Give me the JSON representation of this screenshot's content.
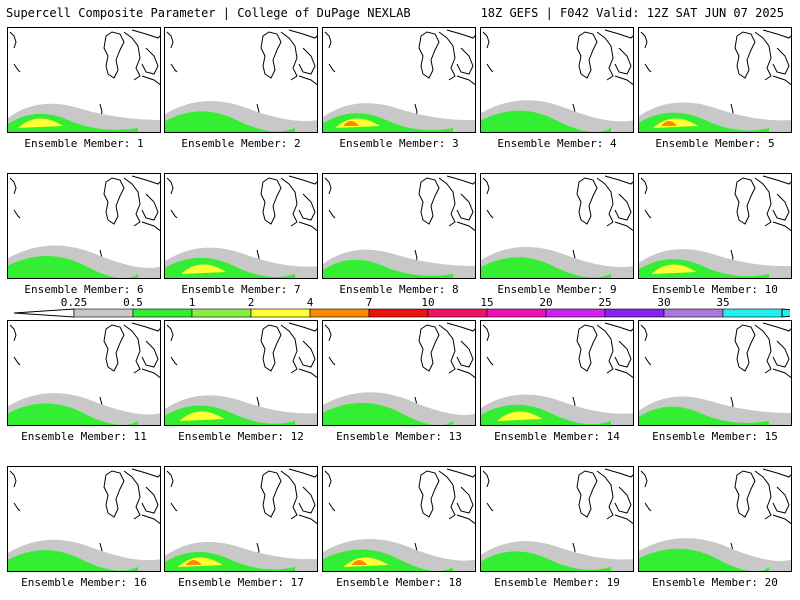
{
  "header": {
    "left": "Supercell Composite Parameter | College of DuPage NEXLAB",
    "right": "18Z GEFS | F042 Valid: 12Z SAT JUN 07 2025"
  },
  "caption_prefix": "Ensemble Member:",
  "members": [
    {
      "number": "1",
      "intensity": 2
    },
    {
      "number": "2",
      "intensity": 1
    },
    {
      "number": "3",
      "intensity": 3
    },
    {
      "number": "4",
      "intensity": 1
    },
    {
      "number": "5",
      "intensity": 3
    },
    {
      "number": "6",
      "intensity": 1
    },
    {
      "number": "7",
      "intensity": 2
    },
    {
      "number": "8",
      "intensity": 1
    },
    {
      "number": "9",
      "intensity": 1
    },
    {
      "number": "10",
      "intensity": 2
    },
    {
      "number": "11",
      "intensity": 1
    },
    {
      "number": "12",
      "intensity": 2
    },
    {
      "number": "13",
      "intensity": 1
    },
    {
      "number": "14",
      "intensity": 2
    },
    {
      "number": "15",
      "intensity": 1
    },
    {
      "number": "16",
      "intensity": 1
    },
    {
      "number": "17",
      "intensity": 3
    },
    {
      "number": "18",
      "intensity": 3
    },
    {
      "number": "19",
      "intensity": 1
    },
    {
      "number": "20",
      "intensity": 1
    }
  ],
  "colorbar": {
    "labels": [
      "0.25",
      "0.5",
      "1",
      "2",
      "4",
      "7",
      "10",
      "15",
      "20",
      "25",
      "30",
      "35"
    ],
    "colors": [
      "#c8c8c8",
      "#33ee33",
      "#88ee44",
      "#ffff33",
      "#ff8800",
      "#ee1111",
      "#ee1166",
      "#ee11bb",
      "#cc22ee",
      "#8822ee",
      "#aa77dd",
      "#22eeee"
    ]
  }
}
